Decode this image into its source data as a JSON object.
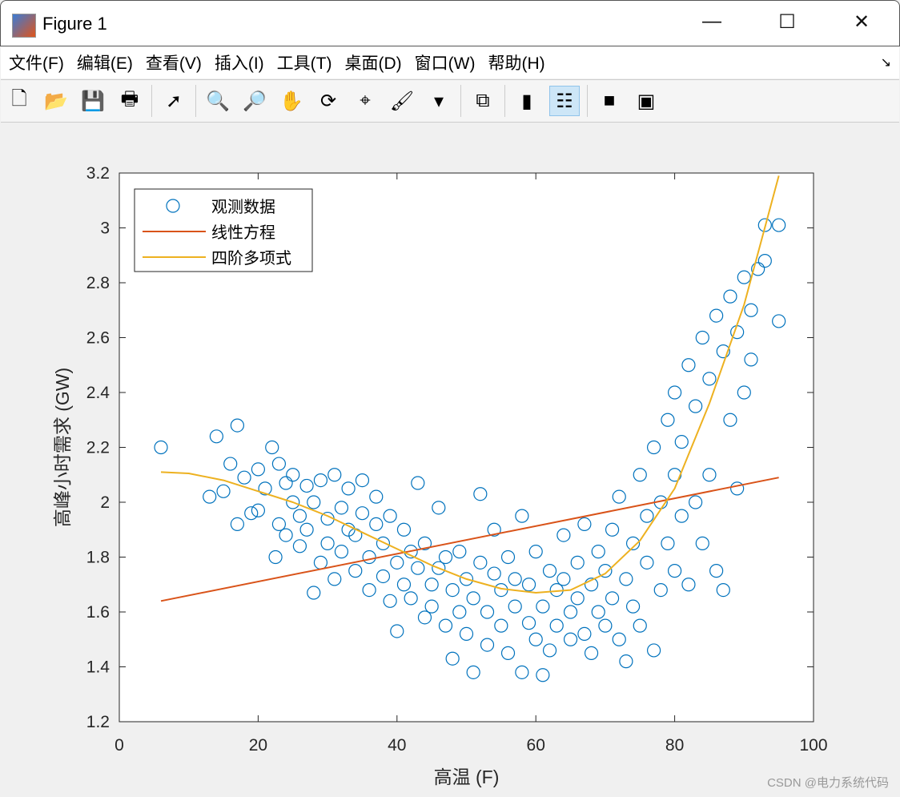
{
  "window": {
    "title": "Figure 1",
    "minimize": "—",
    "maximize": "☐",
    "close": "✕"
  },
  "menu": [
    "文件(F)",
    "编辑(E)",
    "查看(V)",
    "插入(I)",
    "工具(T)",
    "桌面(D)",
    "窗口(W)",
    "帮助(H)"
  ],
  "menu_corner": "↘",
  "toolbar": [
    {
      "icon": "new-file-icon",
      "g": "🗋"
    },
    {
      "icon": "open-folder-icon",
      "g": "📂"
    },
    {
      "icon": "save-icon",
      "g": "💾"
    },
    {
      "icon": "print-icon",
      "g": "🖶"
    },
    "sep",
    {
      "icon": "pointer-icon",
      "g": "➚"
    },
    "sep",
    {
      "icon": "zoom-in-icon",
      "g": "🔍"
    },
    {
      "icon": "zoom-out-icon",
      "g": "🔎"
    },
    {
      "icon": "pan-hand-icon",
      "g": "✋"
    },
    {
      "icon": "rotate-3d-icon",
      "g": "⟳"
    },
    {
      "icon": "data-cursor-icon",
      "g": "⌖"
    },
    {
      "icon": "brush-icon",
      "g": "🖌"
    },
    {
      "icon": "brush-dropdown-icon",
      "g": "▾"
    },
    "sep",
    {
      "icon": "link-plot-icon",
      "g": "⧉"
    },
    "sep",
    {
      "icon": "colorbar-icon",
      "g": "▮"
    },
    {
      "icon": "legend-icon",
      "g": "☷",
      "active": true
    },
    "sep",
    {
      "icon": "hide-plot-tools-icon",
      "g": "■"
    },
    {
      "icon": "show-plot-tools-icon",
      "g": "▣"
    }
  ],
  "watermark": "CSDN @电力系统代码",
  "colors": {
    "scatter": "#0072BD",
    "linear": "#D95319",
    "quartic": "#EDB120"
  },
  "chart_data": {
    "type": "scatter",
    "xlabel": "高温 (F)",
    "ylabel": "高峰小时需求 (GW)",
    "xlim": [
      0,
      100
    ],
    "ylim": [
      1.2,
      3.2
    ],
    "xticks": [
      "0",
      "20",
      "40",
      "60",
      "80",
      "100"
    ],
    "yticks": [
      "1.2",
      "1.4",
      "1.6",
      "1.8",
      "2",
      "2.2",
      "2.4",
      "2.6",
      "2.8",
      "3",
      "3.2"
    ],
    "grid": false,
    "legend_position": "top-left",
    "series": [
      {
        "name": "观测数据",
        "type": "scatter",
        "points": [
          [
            6,
            2.2
          ],
          [
            13,
            2.02
          ],
          [
            14,
            2.24
          ],
          [
            15,
            2.04
          ],
          [
            16,
            2.14
          ],
          [
            17,
            2.28
          ],
          [
            17,
            1.92
          ],
          [
            18,
            2.09
          ],
          [
            19,
            1.96
          ],
          [
            20,
            2.12
          ],
          [
            20,
            1.97
          ],
          [
            21,
            2.05
          ],
          [
            22,
            2.2
          ],
          [
            22.5,
            1.8
          ],
          [
            23,
            1.92
          ],
          [
            23,
            2.14
          ],
          [
            24,
            2.07
          ],
          [
            24,
            1.88
          ],
          [
            25,
            2.0
          ],
          [
            25,
            2.1
          ],
          [
            26,
            1.95
          ],
          [
            26,
            1.84
          ],
          [
            27,
            2.06
          ],
          [
            27,
            1.9
          ],
          [
            28,
            1.67
          ],
          [
            28,
            2.0
          ],
          [
            29,
            1.78
          ],
          [
            29,
            2.08
          ],
          [
            30,
            1.94
          ],
          [
            30,
            1.85
          ],
          [
            31,
            2.1
          ],
          [
            31,
            1.72
          ],
          [
            32,
            1.98
          ],
          [
            32,
            1.82
          ],
          [
            33,
            1.9
          ],
          [
            33,
            2.05
          ],
          [
            34,
            1.75
          ],
          [
            34,
            1.88
          ],
          [
            35,
            1.96
          ],
          [
            35,
            2.08
          ],
          [
            36,
            1.8
          ],
          [
            36,
            1.68
          ],
          [
            37,
            1.92
          ],
          [
            37,
            2.02
          ],
          [
            38,
            1.73
          ],
          [
            38,
            1.85
          ],
          [
            39,
            1.95
          ],
          [
            39,
            1.64
          ],
          [
            40,
            1.53
          ],
          [
            40,
            1.78
          ],
          [
            41,
            1.9
          ],
          [
            41,
            1.7
          ],
          [
            42,
            1.82
          ],
          [
            42,
            1.65
          ],
          [
            43,
            2.07
          ],
          [
            43,
            1.76
          ],
          [
            44,
            1.58
          ],
          [
            44,
            1.85
          ],
          [
            45,
            1.7
          ],
          [
            45,
            1.62
          ],
          [
            46,
            1.98
          ],
          [
            46,
            1.76
          ],
          [
            47,
            1.55
          ],
          [
            47,
            1.8
          ],
          [
            48,
            1.43
          ],
          [
            48,
            1.68
          ],
          [
            49,
            1.6
          ],
          [
            49,
            1.82
          ],
          [
            50,
            1.72
          ],
          [
            50,
            1.52
          ],
          [
            51,
            1.38
          ],
          [
            51,
            1.65
          ],
          [
            52,
            2.03
          ],
          [
            52,
            1.78
          ],
          [
            53,
            1.6
          ],
          [
            53,
            1.48
          ],
          [
            54,
            1.74
          ],
          [
            54,
            1.9
          ],
          [
            55,
            1.55
          ],
          [
            55,
            1.68
          ],
          [
            56,
            1.8
          ],
          [
            56,
            1.45
          ],
          [
            57,
            1.62
          ],
          [
            57,
            1.72
          ],
          [
            58,
            1.38
          ],
          [
            58,
            1.95
          ],
          [
            59,
            1.56
          ],
          [
            59,
            1.7
          ],
          [
            60,
            1.5
          ],
          [
            60,
            1.82
          ],
          [
            61,
            1.37
          ],
          [
            61,
            1.62
          ],
          [
            62,
            1.75
          ],
          [
            62,
            1.46
          ],
          [
            63,
            1.68
          ],
          [
            63,
            1.55
          ],
          [
            64,
            1.88
          ],
          [
            64,
            1.72
          ],
          [
            65,
            1.6
          ],
          [
            65,
            1.5
          ],
          [
            66,
            1.78
          ],
          [
            66,
            1.65
          ],
          [
            67,
            1.52
          ],
          [
            67,
            1.92
          ],
          [
            68,
            1.7
          ],
          [
            68,
            1.45
          ],
          [
            69,
            1.6
          ],
          [
            69,
            1.82
          ],
          [
            70,
            1.55
          ],
          [
            70,
            1.75
          ],
          [
            71,
            1.9
          ],
          [
            71,
            1.65
          ],
          [
            72,
            1.5
          ],
          [
            72,
            2.02
          ],
          [
            73,
            1.42
          ],
          [
            73,
            1.72
          ],
          [
            74,
            1.85
          ],
          [
            74,
            1.62
          ],
          [
            75,
            2.1
          ],
          [
            75,
            1.55
          ],
          [
            76,
            1.78
          ],
          [
            76,
            1.95
          ],
          [
            77,
            1.46
          ],
          [
            77,
            2.2
          ],
          [
            78,
            1.68
          ],
          [
            78,
            2.0
          ],
          [
            79,
            2.3
          ],
          [
            79,
            1.85
          ],
          [
            80,
            2.1
          ],
          [
            80,
            2.4
          ],
          [
            80,
            1.75
          ],
          [
            81,
            2.22
          ],
          [
            81,
            1.95
          ],
          [
            82,
            2.5
          ],
          [
            82,
            1.7
          ],
          [
            83,
            2.35
          ],
          [
            83,
            2.0
          ],
          [
            84,
            2.6
          ],
          [
            84,
            1.85
          ],
          [
            85,
            2.45
          ],
          [
            85,
            2.1
          ],
          [
            86,
            2.68
          ],
          [
            86,
            1.75
          ],
          [
            87,
            2.55
          ],
          [
            87,
            1.68
          ],
          [
            88,
            2.75
          ],
          [
            88,
            2.3
          ],
          [
            89,
            2.62
          ],
          [
            89,
            2.05
          ],
          [
            90,
            2.82
          ],
          [
            90,
            2.4
          ],
          [
            91,
            2.7
          ],
          [
            91,
            2.52
          ],
          [
            92,
            2.85
          ],
          [
            93,
            3.01
          ],
          [
            93,
            2.88
          ],
          [
            95,
            3.01
          ],
          [
            95,
            2.66
          ]
        ]
      },
      {
        "name": "线性方程",
        "type": "line",
        "points": [
          [
            6,
            1.64
          ],
          [
            95,
            2.09
          ]
        ]
      },
      {
        "name": "四阶多项式",
        "type": "line",
        "points": [
          [
            6,
            2.11
          ],
          [
            10,
            2.105
          ],
          [
            15,
            2.08
          ],
          [
            20,
            2.04
          ],
          [
            25,
            2.0
          ],
          [
            30,
            1.95
          ],
          [
            35,
            1.89
          ],
          [
            40,
            1.83
          ],
          [
            45,
            1.77
          ],
          [
            50,
            1.72
          ],
          [
            55,
            1.685
          ],
          [
            60,
            1.67
          ],
          [
            65,
            1.68
          ],
          [
            70,
            1.74
          ],
          [
            75,
            1.86
          ],
          [
            80,
            2.05
          ],
          [
            85,
            2.36
          ],
          [
            90,
            2.72
          ],
          [
            95,
            3.19
          ]
        ]
      }
    ]
  }
}
